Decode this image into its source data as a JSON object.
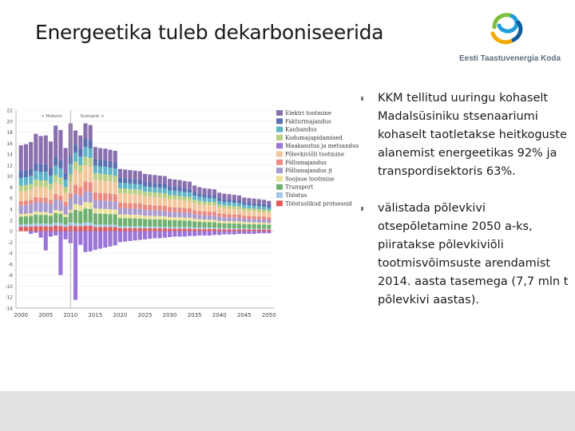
{
  "slide": {
    "title": "Energeetika tuleb dekarboniseerida"
  },
  "logo": {
    "text": "Eesti Taastuvenergia Koda",
    "colors": [
      "#7bbf3a",
      "#1f9ed9",
      "#f2a900",
      "#0d5c9e"
    ]
  },
  "bullets": [
    "KKM tellitud uuringu kohaselt Madalsüsiniku stsenaariumi kohaselt taotletakse heitkoguste alanemist energeetikas 92% ja transpordisektoris 63%.",
    "välistada põlevkivi otsepõletamine 2050 a-ks, piiratakse põlevkiviõli tootmisvõimsuste arendamist 2014. aasta tasemega (7,7 mln t põlevkivi aastas)."
  ],
  "chart_data": {
    "type": "bar",
    "stacked": true,
    "annotations": [
      "< Historic",
      "Scenario >"
    ],
    "split_year": 2010,
    "x_ticks": [
      2000,
      2005,
      2010,
      2015,
      2020,
      2025,
      2030,
      2035,
      2040,
      2045,
      2050
    ],
    "y_ticks": [
      22,
      20,
      18,
      16,
      14,
      12,
      10,
      8,
      6,
      4,
      2,
      0,
      -2,
      -4,
      -6,
      -8,
      -10,
      -12,
      -14
    ],
    "ylim": [
      -14,
      22
    ],
    "xlim": [
      1999,
      2051
    ],
    "legend_position": "right",
    "series": [
      {
        "name": "Elektri tootmine",
        "color": "#8a6fae"
      },
      {
        "name": "Fakturmajandus",
        "color": "#5a6fb0"
      },
      {
        "name": "Kaubandus",
        "color": "#5fb4c8"
      },
      {
        "name": "Kodumajapidamised",
        "color": "#b9cf84"
      },
      {
        "name": "Maakasutus ja metsandus",
        "color": "#9a74d6"
      },
      {
        "name": "Põlevkiviõli tootmine",
        "color": "#f3c79d"
      },
      {
        "name": "Põllumajandus",
        "color": "#ea8a82"
      },
      {
        "name": "Põllumajandus jt",
        "color": "#a99bcf"
      },
      {
        "name": "Soojuse tootmine",
        "color": "#e9e19a"
      },
      {
        "name": "Transport",
        "color": "#6fb071"
      },
      {
        "name": "Tööstus",
        "color": "#a4c8e6"
      },
      {
        "name": "Tööstuslikud protsessid",
        "color": "#e05a5a"
      }
    ],
    "values": {
      "pos_order": [
        "Tööstuslikud protsessid",
        "Tööstus",
        "Transport",
        "Soojuse tootmine",
        "Põllumajandus jt",
        "Põllumajandus",
        "Põlevkiviõli tootmine",
        "Kodumajapidamised",
        "Kaubandus",
        "Fakturmajandus",
        "Elektri tootmine"
      ],
      "neg_series": "Maakasutus ja metsandus",
      "years": [
        2000,
        2001,
        2002,
        2003,
        2004,
        2005,
        2006,
        2007,
        2008,
        2009,
        2010,
        2011,
        2012,
        2013,
        2014,
        2015,
        2016,
        2017,
        2018,
        2019,
        2020,
        2021,
        2022,
        2023,
        2024,
        2025,
        2026,
        2027,
        2028,
        2029,
        2030,
        2031,
        2032,
        2033,
        2034,
        2035,
        2036,
        2037,
        2038,
        2039,
        2040,
        2041,
        2042,
        2043,
        2044,
        2045,
        2046,
        2047,
        2048,
        2049,
        2050
      ],
      "totals": [
        15.6,
        15.8,
        16.2,
        17.7,
        17.3,
        17.4,
        16.3,
        19.2,
        18.4,
        15.1,
        19.6,
        18.3,
        17.4,
        19.6,
        19.3,
        15.3,
        15.1,
        15.0,
        14.8,
        14.6,
        11.3,
        11.2,
        11.1,
        11.0,
        10.9,
        10.4,
        10.3,
        10.2,
        10.1,
        10.0,
        9.5,
        9.4,
        9.3,
        9.1,
        9.0,
        8.3,
        8.0,
        7.8,
        7.7,
        7.6,
        7.0,
        6.8,
        6.7,
        6.6,
        6.5,
        6.1,
        6.0,
        5.9,
        5.8,
        5.7,
        5.5
      ],
      "negative": [
        0.0,
        0.0,
        -0.5,
        -0.3,
        -1.2,
        -3.5,
        -1.0,
        -0.8,
        -8.0,
        -1.5,
        -2.2,
        -12.5,
        -2.5,
        -3.8,
        -3.7,
        -3.4,
        -3.2,
        -3.0,
        -2.8,
        -2.6,
        -2.0,
        -1.9,
        -1.8,
        -1.7,
        -1.6,
        -1.5,
        -1.4,
        -1.3,
        -1.3,
        -1.2,
        -1.1,
        -1.0,
        -1.0,
        -1.0,
        -0.9,
        -0.9,
        -0.8,
        -0.8,
        -0.8,
        -0.7,
        -0.7,
        -0.6,
        -0.6,
        -0.6,
        -0.5,
        -0.5,
        -0.5,
        -0.5,
        -0.4,
        -0.4,
        -0.4
      ]
    }
  }
}
